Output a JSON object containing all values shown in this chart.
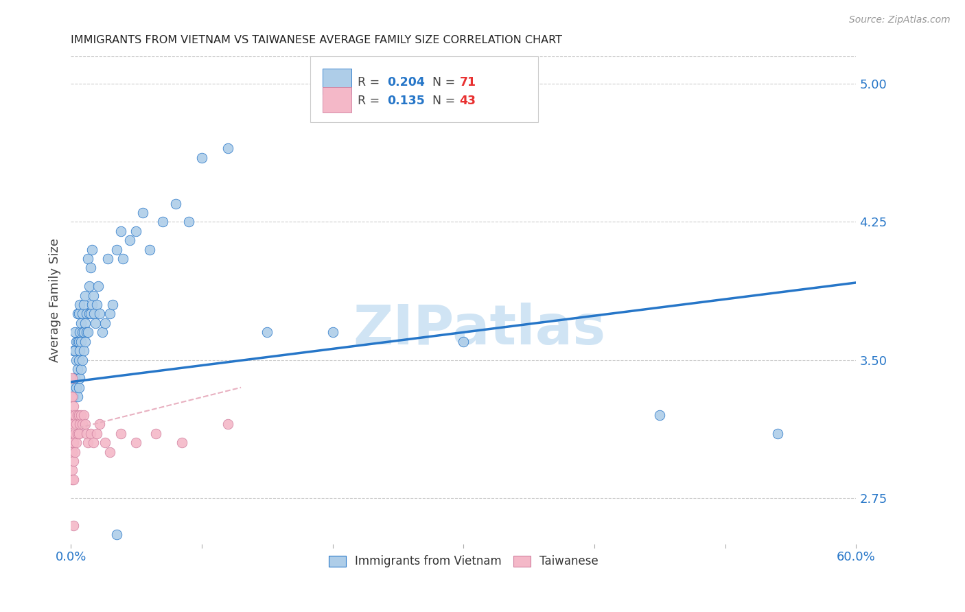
{
  "title": "IMMIGRANTS FROM VIETNAM VS TAIWANESE AVERAGE FAMILY SIZE CORRELATION CHART",
  "source": "Source: ZipAtlas.com",
  "ylabel": "Average Family Size",
  "right_yticks": [
    2.75,
    3.5,
    4.25,
    5.0
  ],
  "legend_blue_R": "0.204",
  "legend_blue_N": "71",
  "legend_pink_R": "0.135",
  "legend_pink_N": "43",
  "blue_color": "#aecde8",
  "pink_color": "#f4b8c8",
  "line_blue_color": "#2676c8",
  "line_pink_color": "#e8b0c0",
  "legend_R_color": "#2676c8",
  "legend_N_color": "#e83030",
  "watermark_color": "#d0e4f4",
  "title_color": "#222222",
  "axis_color": "#2676c8",
  "grid_color": "#cccccc",
  "background_color": "#ffffff",
  "vietnam_x": [
    0.001,
    0.002,
    0.002,
    0.003,
    0.003,
    0.003,
    0.004,
    0.004,
    0.004,
    0.005,
    0.005,
    0.005,
    0.005,
    0.006,
    0.006,
    0.006,
    0.006,
    0.007,
    0.007,
    0.007,
    0.007,
    0.008,
    0.008,
    0.008,
    0.009,
    0.009,
    0.009,
    0.01,
    0.01,
    0.01,
    0.011,
    0.011,
    0.011,
    0.012,
    0.012,
    0.013,
    0.013,
    0.014,
    0.014,
    0.015,
    0.015,
    0.016,
    0.016,
    0.017,
    0.018,
    0.019,
    0.02,
    0.021,
    0.022,
    0.024,
    0.026,
    0.028,
    0.03,
    0.032,
    0.035,
    0.038,
    0.04,
    0.045,
    0.05,
    0.055,
    0.06,
    0.07,
    0.08,
    0.09,
    0.1,
    0.12,
    0.15,
    0.2,
    0.3,
    0.45,
    0.54
  ],
  "vietnam_y": [
    3.35,
    3.3,
    3.55,
    3.4,
    3.55,
    3.65,
    3.35,
    3.5,
    3.6,
    3.3,
    3.45,
    3.6,
    3.75,
    3.35,
    3.5,
    3.6,
    3.75,
    3.4,
    3.55,
    3.65,
    3.8,
    3.45,
    3.6,
    3.7,
    3.5,
    3.65,
    3.75,
    3.55,
    3.65,
    3.8,
    3.6,
    3.7,
    3.85,
    3.65,
    3.75,
    3.65,
    4.05,
    3.75,
    3.9,
    3.75,
    4.0,
    3.8,
    4.1,
    3.85,
    3.75,
    3.7,
    3.8,
    3.9,
    3.75,
    3.65,
    3.7,
    4.05,
    3.75,
    3.8,
    4.1,
    4.2,
    4.05,
    4.15,
    4.2,
    4.3,
    4.1,
    4.25,
    4.35,
    4.25,
    4.6,
    4.65,
    3.65,
    3.65,
    3.6,
    3.2,
    3.1
  ],
  "taiwan_x": [
    0.0005,
    0.0005,
    0.001,
    0.001,
    0.001,
    0.001,
    0.001,
    0.001,
    0.001,
    0.001,
    0.001,
    0.002,
    0.002,
    0.002,
    0.002,
    0.002,
    0.003,
    0.003,
    0.003,
    0.004,
    0.004,
    0.005,
    0.005,
    0.006,
    0.006,
    0.007,
    0.008,
    0.009,
    0.01,
    0.011,
    0.012,
    0.013,
    0.015,
    0.017,
    0.02,
    0.022,
    0.026,
    0.03,
    0.038,
    0.05,
    0.065,
    0.085,
    0.12
  ],
  "taiwan_y": [
    3.3,
    3.2,
    3.4,
    3.3,
    3.2,
    3.1,
    3.0,
    2.9,
    2.85,
    3.05,
    3.15,
    3.25,
    3.15,
    3.05,
    2.95,
    2.85,
    3.2,
    3.1,
    3.0,
    3.15,
    3.05,
    3.2,
    3.1,
    3.2,
    3.1,
    3.15,
    3.2,
    3.15,
    3.2,
    3.15,
    3.1,
    3.05,
    3.1,
    3.05,
    3.1,
    3.15,
    3.05,
    3.0,
    3.1,
    3.05,
    3.1,
    3.05,
    3.15
  ],
  "taiwan_outlier_x": [
    0.002
  ],
  "taiwan_outlier_y": [
    2.6
  ],
  "vietnam_outlier_x": [
    0.035
  ],
  "vietnam_outlier_y": [
    2.55
  ],
  "xlim": [
    0.0,
    0.6
  ],
  "ylim": [
    2.5,
    5.15
  ],
  "blue_trendline_x": [
    0.0,
    0.6
  ],
  "blue_trendline_y": [
    3.38,
    3.92
  ],
  "pink_trendline_x": [
    0.0,
    0.13
  ],
  "pink_trendline_y": [
    3.12,
    3.35
  ]
}
